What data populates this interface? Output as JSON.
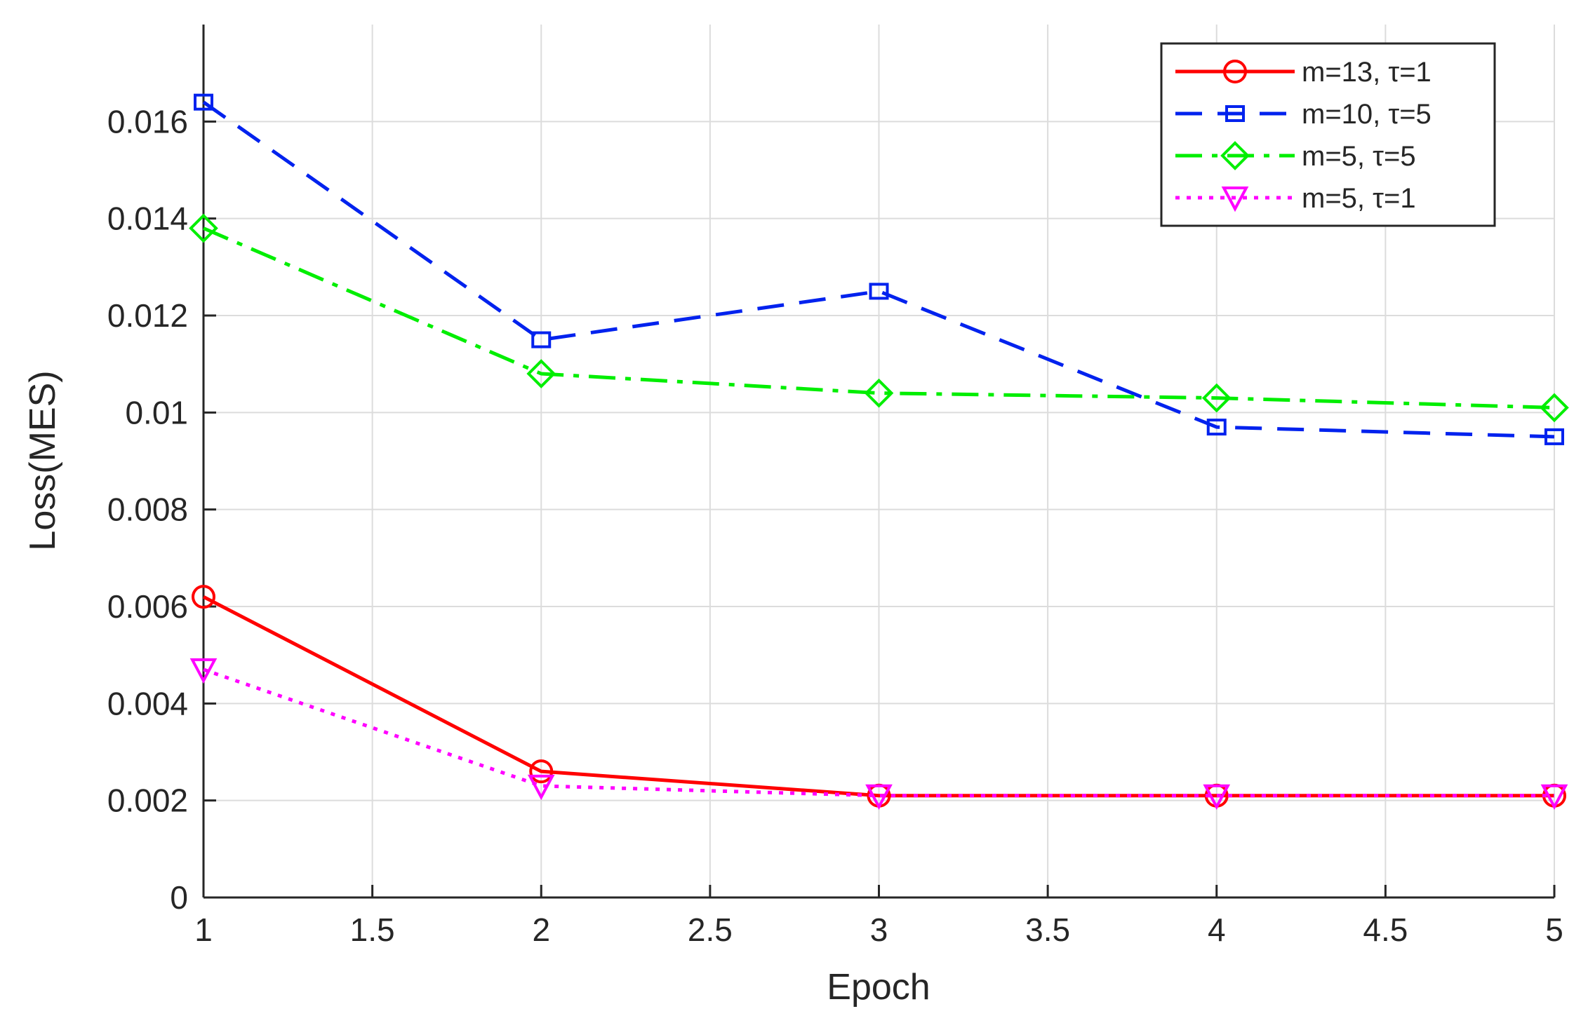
{
  "chart_data": {
    "type": "line",
    "title": "",
    "xlabel": "Epoch",
    "ylabel": "Loss(MES)",
    "xlim": [
      1,
      5
    ],
    "ylim": [
      0,
      0.018
    ],
    "xticks": [
      1,
      1.5,
      2,
      2.5,
      3,
      3.5,
      4,
      4.5,
      5
    ],
    "xtick_labels": [
      "1",
      "1.5",
      "2",
      "2.5",
      "3",
      "3.5",
      "4",
      "4.5",
      "5"
    ],
    "yticks": [
      0,
      0.002,
      0.004,
      0.006,
      0.008,
      0.01,
      0.012,
      0.014,
      0.016
    ],
    "ytick_labels": [
      "0",
      "0.002",
      "0.004",
      "0.006",
      "0.008",
      "0.01",
      "0.012",
      "0.014",
      "0.016"
    ],
    "grid": true,
    "legend_position": "top-right",
    "x": [
      1,
      2,
      3,
      4,
      5
    ],
    "series": [
      {
        "name": "m=13, τ=1",
        "values": [
          0.0062,
          0.0026,
          0.0021,
          0.0021,
          0.0021
        ],
        "color": "#ff0000",
        "dash": "solid",
        "marker": "circle"
      },
      {
        "name": "m=10, τ=5",
        "values": [
          0.0164,
          0.0115,
          0.0125,
          0.0097,
          0.0095
        ],
        "color": "#0022ee",
        "dash": "dashed",
        "marker": "square"
      },
      {
        "name": "m=5, τ=5",
        "values": [
          0.0138,
          0.0108,
          0.0104,
          0.0103,
          0.0101
        ],
        "color": "#00ee00",
        "dash": "dashdot",
        "marker": "diamond"
      },
      {
        "name": "m=5, τ=1",
        "values": [
          0.0047,
          0.0023,
          0.0021,
          0.0021,
          0.0021
        ],
        "color": "#ff00ff",
        "dash": "dotted",
        "marker": "triangle-down"
      }
    ]
  }
}
